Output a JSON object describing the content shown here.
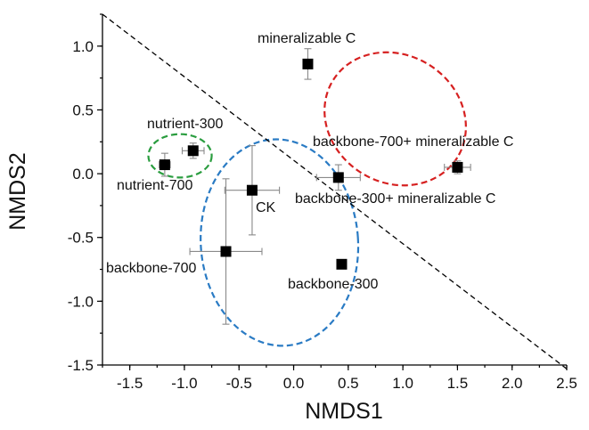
{
  "chart_data": {
    "type": "scatter",
    "xlabel": "NMDS1",
    "ylabel": "NMDS2",
    "xlim": [
      -1.75,
      2.5
    ],
    "ylim": [
      -1.5,
      1.25
    ],
    "xticks": [
      -1.5,
      -1.0,
      -0.5,
      0.0,
      0.5,
      1.0,
      1.5,
      2.0,
      2.5
    ],
    "xtick_labels": [
      "-1.5",
      "-1.0",
      "-0.5",
      "0.0",
      "0.5",
      "1.0",
      "1.5",
      "2.0",
      "2.5"
    ],
    "yticks": [
      -1.5,
      -1.0,
      -0.5,
      0.0,
      0.5,
      1.0
    ],
    "ytick_labels": [
      "-1.5",
      "-1.0",
      "-0.5",
      "0.0",
      "0.5",
      "1.0"
    ],
    "grid": false,
    "points": [
      {
        "label": "mineralizable C",
        "x": 0.13,
        "y": 0.86,
        "xerr": 0.0,
        "yerr": 0.12
      },
      {
        "label": "nutrient-300",
        "x": -0.92,
        "y": 0.18,
        "xerr": 0.1,
        "yerr": 0.06
      },
      {
        "label": "nutrient-700",
        "x": -1.18,
        "y": 0.07,
        "xerr": 0.05,
        "yerr": 0.09
      },
      {
        "label": "backbone-700+ mineralizable C",
        "x": 1.5,
        "y": 0.05,
        "xerr": 0.12,
        "yerr": 0.05
      },
      {
        "label": "backbone-300+ mineralizable C",
        "x": 0.41,
        "y": -0.03,
        "xerr": 0.2,
        "yerr": 0.1
      },
      {
        "label": "CK",
        "x": -0.38,
        "y": -0.13,
        "xerr": 0.25,
        "yerr": 0.35
      },
      {
        "label": "backbone-700",
        "x": -0.62,
        "y": -0.61,
        "xerr": 0.33,
        "yerr": 0.57
      },
      {
        "label": "backbone-300",
        "x": 0.44,
        "y": -0.71,
        "xerr": 0.0,
        "yerr": 0.0
      }
    ],
    "groups": [
      {
        "color": "#2a9d3f",
        "cx": -1.04,
        "cy": 0.14,
        "rx": 0.29,
        "ry": 0.17,
        "angle": 0
      },
      {
        "color": "#2a7bc4",
        "cx": -0.13,
        "cy": -0.54,
        "rx": 0.72,
        "ry": 0.81,
        "angle": -4
      },
      {
        "color": "#d62020",
        "cx": 0.93,
        "cy": 0.43,
        "rx": 0.67,
        "ry": 0.5,
        "angle": 32
      }
    ],
    "dashed_line": {
      "color": "#000000",
      "x1": -1.75,
      "y1": 1.25,
      "x2": 2.5,
      "y2": -1.53
    }
  }
}
